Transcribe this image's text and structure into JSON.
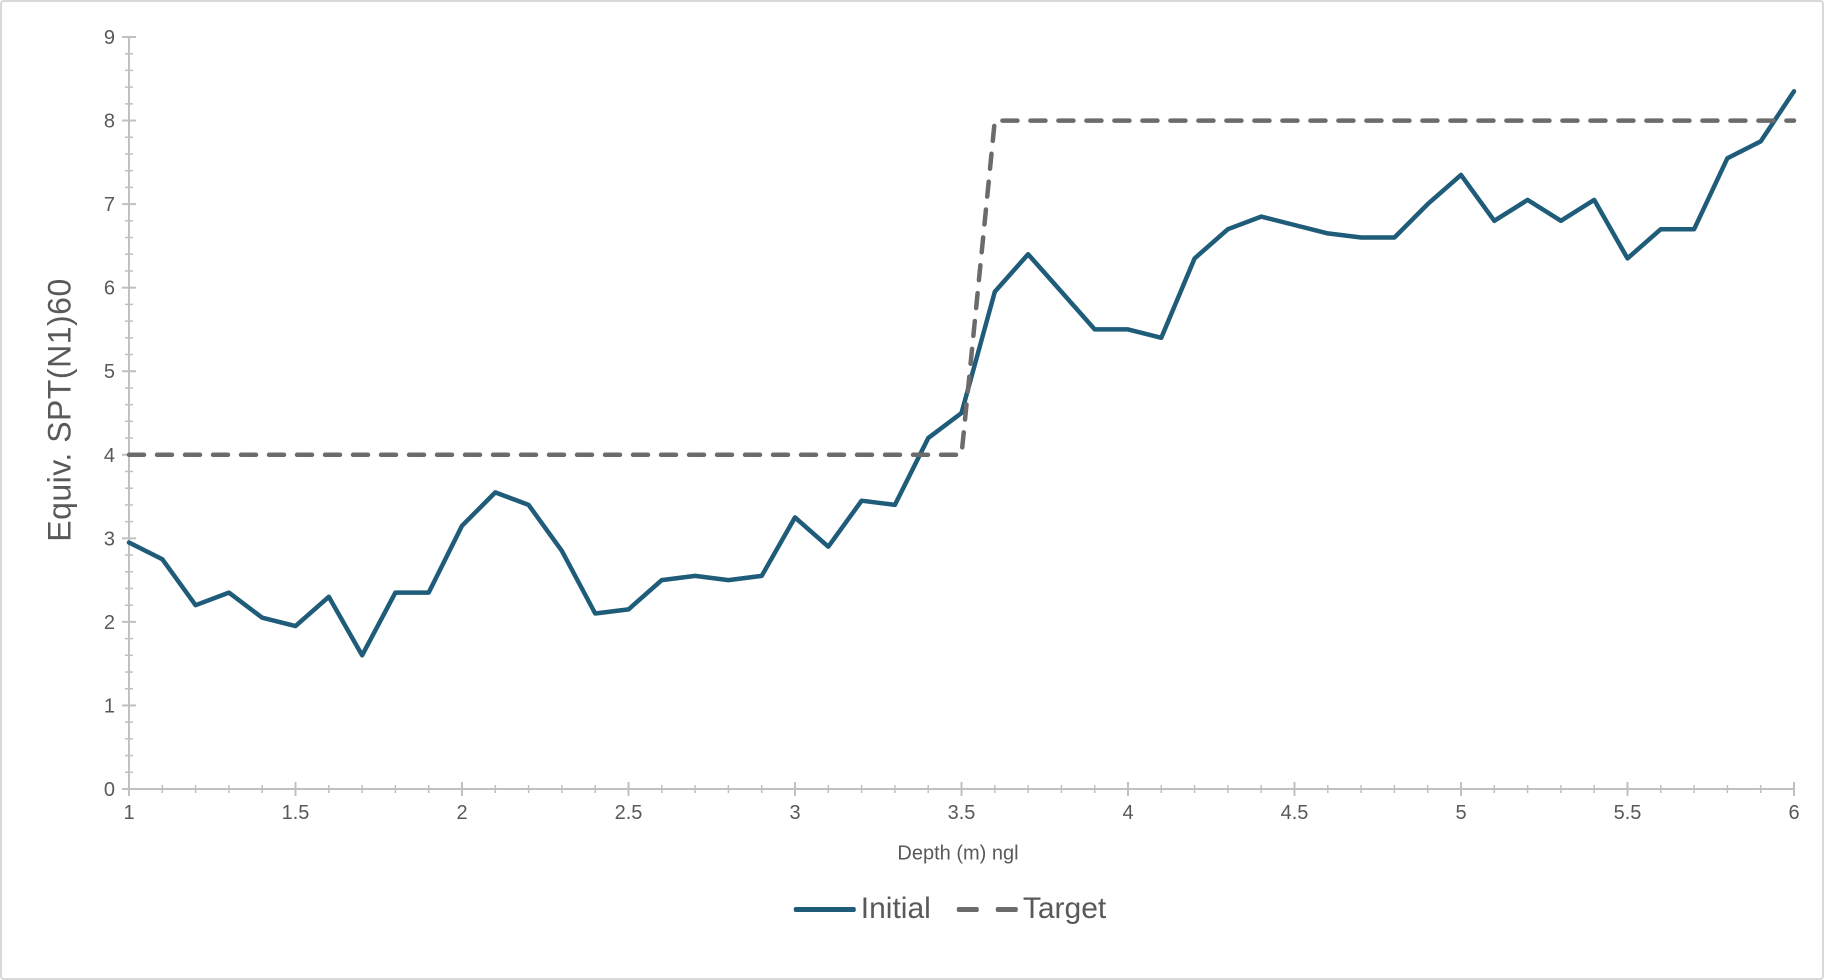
{
  "colors": {
    "initial": "#1F5C7A",
    "target": "#6B6B6B",
    "axis": "#C0C0C0",
    "tick_label": "#595959",
    "axis_title": "#595959",
    "border": "#D9D9D9",
    "background": "#FFFFFF"
  },
  "legend": {
    "items": [
      {
        "label": "Initial",
        "style": "solid"
      },
      {
        "label": "Target",
        "style": "dashed"
      }
    ],
    "position": "bottom-center"
  },
  "chart_data": {
    "type": "line",
    "title": "",
    "xlabel": "Depth (m) ngl",
    "ylabel": "Equiv. SPT(N1)60",
    "xlim": [
      1,
      6
    ],
    "ylim": [
      0,
      9
    ],
    "grid": false,
    "x_tick_labels": [
      "1",
      "1.5",
      "2",
      "2.5",
      "3",
      "3.5",
      "4",
      "4.5",
      "5",
      "5.5",
      "6"
    ],
    "y_tick_labels": [
      "0",
      "1",
      "2",
      "3",
      "4",
      "5",
      "6",
      "7",
      "8",
      "9"
    ],
    "x_minor_step": 0.1,
    "y_minor_step": 0.2,
    "legend_position": "bottom-center",
    "series": [
      {
        "name": "Initial",
        "style": "solid",
        "color_key": "initial",
        "x": [
          1.0,
          1.1,
          1.2,
          1.3,
          1.4,
          1.5,
          1.6,
          1.7,
          1.8,
          1.9,
          2.0,
          2.1,
          2.2,
          2.3,
          2.4,
          2.5,
          2.6,
          2.7,
          2.8,
          2.9,
          3.0,
          3.1,
          3.2,
          3.3,
          3.4,
          3.5,
          3.6,
          3.7,
          3.8,
          3.9,
          4.0,
          4.1,
          4.2,
          4.3,
          4.4,
          4.5,
          4.6,
          4.7,
          4.8,
          4.9,
          5.0,
          5.1,
          5.2,
          5.3,
          5.4,
          5.5,
          5.6,
          5.7,
          5.8,
          5.9,
          6.0
        ],
        "y": [
          2.95,
          2.75,
          2.2,
          2.35,
          2.05,
          1.95,
          2.3,
          1.6,
          2.35,
          2.35,
          3.15,
          3.55,
          3.4,
          2.85,
          2.1,
          2.15,
          2.5,
          2.55,
          2.5,
          2.55,
          3.25,
          2.9,
          3.45,
          3.4,
          4.2,
          4.5,
          5.95,
          6.4,
          5.95,
          5.5,
          5.5,
          5.4,
          6.35,
          6.7,
          6.85,
          6.75,
          6.65,
          6.6,
          6.6,
          7.0,
          7.35,
          6.8,
          7.05,
          6.8,
          7.05,
          6.35,
          6.7,
          6.7,
          7.55,
          7.75,
          8.35
        ]
      },
      {
        "name": "Target",
        "style": "dashed",
        "color_key": "target",
        "x": [
          1.0,
          3.5,
          3.6,
          6.0
        ],
        "y": [
          4,
          4,
          8,
          8
        ]
      }
    ]
  }
}
